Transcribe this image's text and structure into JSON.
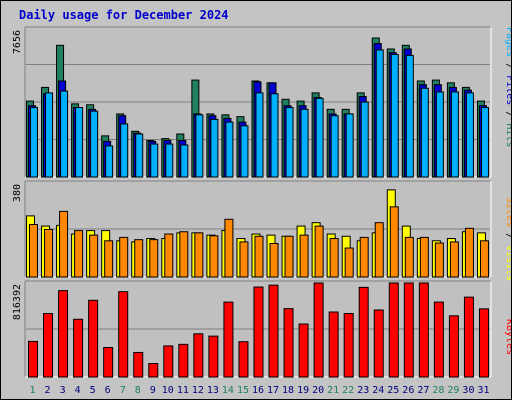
{
  "title": "Daily usage for December 2024",
  "colors": {
    "background": "#c4c4c4",
    "panel": "#c0c0c0",
    "hits": "#208060",
    "files": "#0000d0",
    "pages": "#00b0ff",
    "visits": "#ffff00",
    "sites": "#ff8800",
    "kbytes": "#ff0000",
    "weekday_label": "#000080",
    "weekend_label": "#208060",
    "title": "#0000cc"
  },
  "legend": {
    "top": [
      {
        "text": "Pages",
        "color": "#00b0ff"
      },
      {
        "text": " / ",
        "color": "#000000"
      },
      {
        "text": "Files",
        "color": "#0000d0"
      },
      {
        "text": " / ",
        "color": "#000000"
      },
      {
        "text": "Hits",
        "color": "#208060"
      }
    ],
    "middle": [
      {
        "text": "Sites",
        "color": "#ff8800"
      },
      {
        "text": " / ",
        "color": "#000000"
      },
      {
        "text": "Visits",
        "color": "#ffff00"
      }
    ],
    "bottom": [
      {
        "text": "KBytes",
        "color": "#ff0000"
      }
    ]
  },
  "chart_data": {
    "type": "bar",
    "title": "Daily usage for December 2024",
    "days": [
      1,
      2,
      3,
      4,
      5,
      6,
      7,
      8,
      9,
      10,
      11,
      12,
      13,
      14,
      15,
      16,
      17,
      18,
      19,
      20,
      21,
      22,
      23,
      24,
      25,
      26,
      27,
      28,
      29,
      30,
      31
    ],
    "weekend_days": [
      1,
      7,
      8,
      14,
      15,
      21,
      22,
      28,
      29
    ],
    "panels": [
      {
        "ymax_label": "7656",
        "ymax": 7656,
        "series": [
          {
            "name": "Hits",
            "values": [
              4150,
              4900,
              7200,
              4000,
              3950,
              2250,
              3450,
              2500,
              2000,
              2100,
              2350,
              5300,
              3450,
              3400,
              3300,
              5250,
              5150,
              4250,
              4150,
              4600,
              3700,
              3700,
              4600,
              7600,
              7000,
              7200,
              5250,
              5300,
              5150,
              4900,
              4150
            ]
          },
          {
            "name": "Files",
            "values": [
              3900,
              4550,
              5250,
              3800,
              3700,
              1950,
              3350,
              2400,
              1950,
              2000,
              2000,
              3450,
              3350,
              3200,
              3000,
              5200,
              5150,
              3900,
              3900,
              4350,
              3450,
              3450,
              4400,
              7300,
              6800,
              7000,
              5050,
              5050,
              4900,
              4750,
              3900
            ]
          },
          {
            "name": "Pages",
            "values": [
              3800,
              4600,
              4700,
              3800,
              3600,
              1700,
              2900,
              2350,
              1800,
              1800,
              1750,
              3400,
              3150,
              3000,
              2800,
              4600,
              4550,
              3800,
              3700,
              4300,
              3350,
              3450,
              4100,
              6950,
              6700,
              6650,
              4850,
              4650,
              4650,
              4600,
              3800
            ]
          }
        ]
      },
      {
        "ymax_label": "380",
        "ymax": 380,
        "series": [
          {
            "name": "Visits",
            "values": [
              270,
              225,
              228,
              190,
              205,
              205,
              160,
              155,
              170,
              170,
              195,
              195,
              185,
              205,
              170,
              190,
              185,
              180,
              225,
              240,
              190,
              180,
              160,
              195,
              385,
              225,
              170,
              160,
              170,
              200,
              195
            ]
          },
          {
            "name": "Sites",
            "values": [
              232,
              210,
              290,
              205,
              185,
              160,
              175,
              165,
              165,
              190,
              200,
              195,
              182,
              255,
              155,
              180,
              148,
              180,
              185,
              225,
              170,
              128,
              175,
              240,
              310,
              175,
              175,
              150,
              155,
              215,
              160
            ]
          }
        ]
      },
      {
        "ymax_label": "816392",
        "ymax": 816392,
        "series": [
          {
            "name": "KBytes",
            "values": [
              338000,
              603000,
              820000,
              548000,
              728000,
              280000,
              810000,
              233000,
              128000,
              295000,
              310000,
              410000,
              388000,
              711000,
              335000,
              854000,
              872000,
              649000,
              503000,
              906000,
              617000,
              603000,
              851000,
              636000,
              943000,
              1045000,
              1006000,
              711000,
              581000,
              758000,
              647000
            ]
          }
        ]
      }
    ]
  }
}
